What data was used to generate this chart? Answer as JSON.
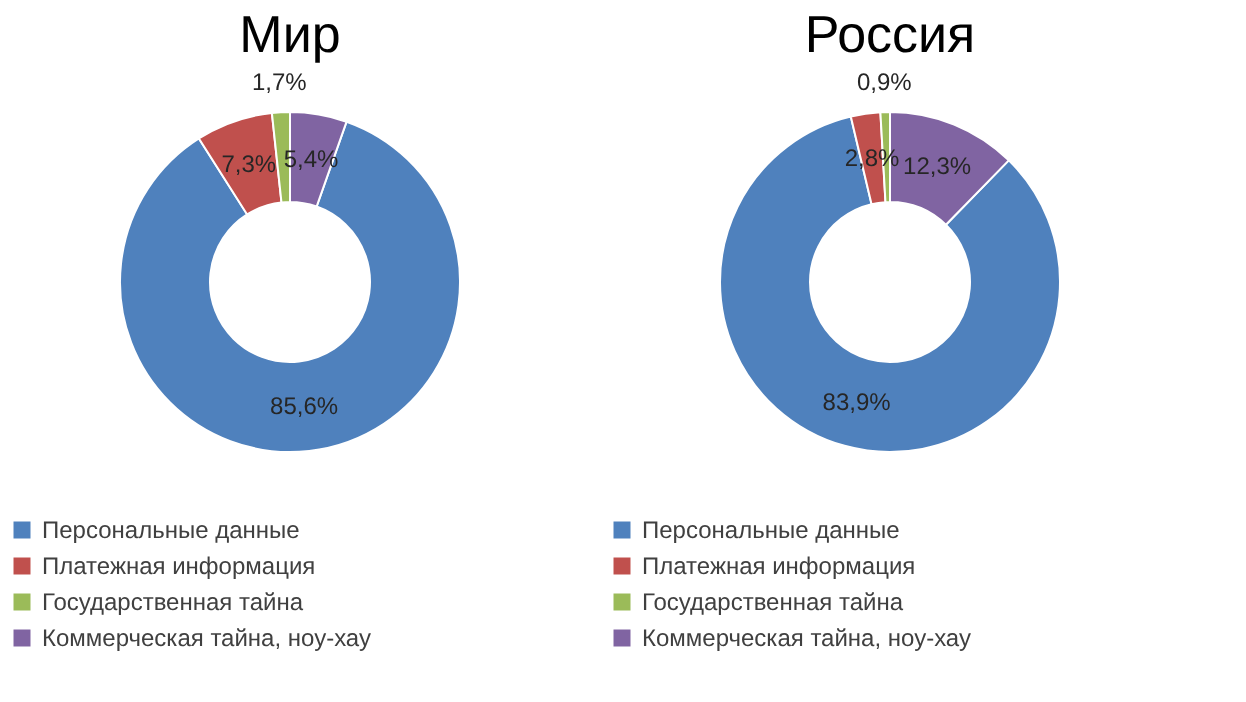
{
  "chart_data": [
    {
      "type": "donut",
      "title": "Мир",
      "categories": [
        "Персональные данные",
        "Платежная информация",
        "Государственная тайна",
        "Коммерческая тайна, ноу-хау"
      ],
      "values": [
        85.6,
        7.3,
        1.7,
        5.4
      ],
      "colors": [
        "#4f81bd",
        "#c0504d",
        "#9bbb59",
        "#8064a2"
      ],
      "value_labels": [
        "85,6%",
        "7,3%",
        "1,7%",
        "5,4%"
      ],
      "legend": "bottom"
    },
    {
      "type": "donut",
      "title": "Россия",
      "categories": [
        "Персональные данные",
        "Платежная информация",
        "Государственная тайна",
        "Коммерческая тайна, ноу-хау"
      ],
      "values": [
        83.9,
        2.8,
        0.9,
        12.3
      ],
      "colors": [
        "#4f81bd",
        "#c0504d",
        "#9bbb59",
        "#8064a2"
      ],
      "value_labels": [
        "83,9%",
        "2,8%",
        "0,9%",
        "12,3%"
      ],
      "legend": "bottom"
    }
  ]
}
